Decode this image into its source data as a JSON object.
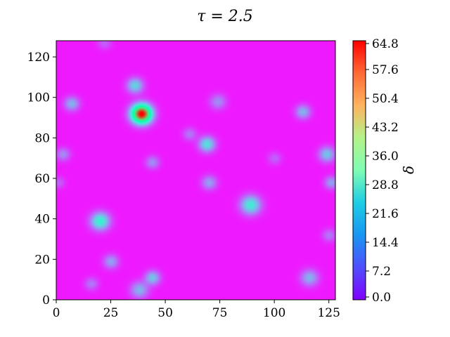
{
  "chart_data": {
    "type": "heatmap",
    "title": "τ = 2.5",
    "xlabel": "",
    "ylabel": "",
    "xlim": [
      0,
      128
    ],
    "ylim": [
      0,
      128
    ],
    "xticks": [
      0,
      25,
      50,
      75,
      100,
      125
    ],
    "yticks": [
      0,
      20,
      40,
      60,
      80,
      100,
      120
    ],
    "colormap": "rainbow",
    "colorbar": {
      "label": "δ",
      "min": 0.0,
      "max": 64.8,
      "ticks": [
        "0.0",
        "7.2",
        "14.4",
        "21.6",
        "28.8",
        "36.0",
        "43.2",
        "50.4",
        "57.6",
        "64.8"
      ]
    },
    "background_value": 2.0,
    "blobs": [
      {
        "x": 39,
        "y": 92,
        "peak": 64,
        "radius": 3.2
      },
      {
        "x": 36,
        "y": 106,
        "peak": 18,
        "radius": 2.6
      },
      {
        "x": 7,
        "y": 97,
        "peak": 14,
        "radius": 2.4
      },
      {
        "x": 20,
        "y": 39,
        "peak": 24,
        "radius": 3.0
      },
      {
        "x": 89,
        "y": 47,
        "peak": 22,
        "radius": 3.2
      },
      {
        "x": 69,
        "y": 77,
        "peak": 20,
        "radius": 2.6
      },
      {
        "x": 74,
        "y": 98,
        "peak": 10,
        "radius": 2.6
      },
      {
        "x": 70,
        "y": 58,
        "peak": 12,
        "radius": 2.4
      },
      {
        "x": 113,
        "y": 93,
        "peak": 14,
        "radius": 2.4
      },
      {
        "x": 124,
        "y": 72,
        "peak": 16,
        "radius": 2.6
      },
      {
        "x": 126,
        "y": 58,
        "peak": 12,
        "radius": 2.2
      },
      {
        "x": 3,
        "y": 72,
        "peak": 10,
        "radius": 2.2
      },
      {
        "x": 44,
        "y": 68,
        "peak": 10,
        "radius": 2.2
      },
      {
        "x": 25,
        "y": 19,
        "peak": 12,
        "radius": 2.4
      },
      {
        "x": 44,
        "y": 11,
        "peak": 16,
        "radius": 2.4
      },
      {
        "x": 38,
        "y": 5,
        "peak": 14,
        "radius": 2.8
      },
      {
        "x": 16,
        "y": 8,
        "peak": 8,
        "radius": 2.2
      },
      {
        "x": 116,
        "y": 11,
        "peak": 14,
        "radius": 2.8
      },
      {
        "x": 125,
        "y": 32,
        "peak": 8,
        "radius": 2.2
      },
      {
        "x": 61,
        "y": 82,
        "peak": 8,
        "radius": 2.2
      },
      {
        "x": 1,
        "y": 58,
        "peak": 6,
        "radius": 2.0
      },
      {
        "x": 100,
        "y": 70,
        "peak": 6,
        "radius": 2.2
      },
      {
        "x": 22,
        "y": 127,
        "peak": 6,
        "radius": 2.2
      }
    ]
  }
}
